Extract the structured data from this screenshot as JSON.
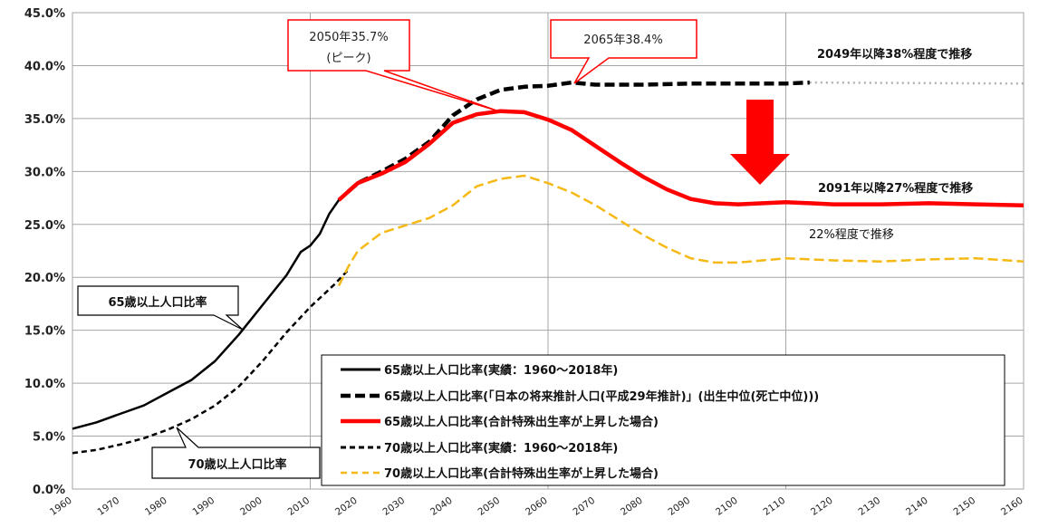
{
  "chart_data": {
    "type": "line",
    "title": "",
    "xlabel": "",
    "ylabel": "",
    "xlim": [
      1960,
      2160
    ],
    "ylim": [
      0,
      45
    ],
    "x_ticks": [
      "1960",
      "1970",
      "1980",
      "1990",
      "2000",
      "2010",
      "2020",
      "2030",
      "2040",
      "2050",
      "2060",
      "2070",
      "2080",
      "2090",
      "2100",
      "2110",
      "2120",
      "2130",
      "2140",
      "2150",
      "2160"
    ],
    "y_ticks": [
      "0.0%",
      "5.0%",
      "10.0%",
      "15.0%",
      "20.0%",
      "25.0%",
      "30.0%",
      "35.0%",
      "40.0%",
      "45.0%"
    ],
    "grid": "vertical lines at 1960, 2010, 2060, 2110, 2160",
    "series": [
      {
        "name": "65歳以上人口比率(実績：1960～2018年)",
        "color": "#000000",
        "style": "solid",
        "points": [
          [
            1960,
            5.7
          ],
          [
            1965,
            6.3
          ],
          [
            1970,
            7.1
          ],
          [
            1975,
            7.9
          ],
          [
            1980,
            9.1
          ],
          [
            1985,
            10.3
          ],
          [
            1990,
            12.1
          ],
          [
            1995,
            14.6
          ],
          [
            2000,
            17.4
          ],
          [
            2005,
            20.2
          ],
          [
            2008,
            22.4
          ],
          [
            2010,
            23.0
          ],
          [
            2012,
            24.1
          ],
          [
            2014,
            26.0
          ],
          [
            2016,
            27.3
          ],
          [
            2018,
            28.1
          ]
        ]
      },
      {
        "name": "65歳以上人口比率(「日本の将来推計人口(平成29年推計)」(出生中位(死亡中位)))",
        "color": "#000000",
        "style": "dash",
        "points": [
          [
            2018,
            28.1
          ],
          [
            2020,
            28.9
          ],
          [
            2025,
            30.0
          ],
          [
            2030,
            31.2
          ],
          [
            2035,
            32.8
          ],
          [
            2040,
            35.3
          ],
          [
            2045,
            36.8
          ],
          [
            2050,
            37.7
          ],
          [
            2055,
            38.0
          ],
          [
            2060,
            38.1
          ],
          [
            2065,
            38.4
          ],
          [
            2070,
            38.2
          ],
          [
            2080,
            38.2
          ],
          [
            2090,
            38.3
          ],
          [
            2100,
            38.3
          ],
          [
            2110,
            38.3
          ],
          [
            2115,
            38.4
          ]
        ]
      },
      {
        "name": "65歳以上人口比率(合計特殊出生率が上昇した場合)",
        "color": "#ff0000",
        "style": "solid",
        "points": [
          [
            2016,
            27.3
          ],
          [
            2018,
            28.1
          ],
          [
            2020,
            28.9
          ],
          [
            2025,
            29.8
          ],
          [
            2030,
            30.9
          ],
          [
            2035,
            32.6
          ],
          [
            2040,
            34.6
          ],
          [
            2045,
            35.4
          ],
          [
            2050,
            35.7
          ],
          [
            2055,
            35.6
          ],
          [
            2060,
            34.9
          ],
          [
            2065,
            33.9
          ],
          [
            2070,
            32.4
          ],
          [
            2075,
            30.9
          ],
          [
            2080,
            29.5
          ],
          [
            2085,
            28.3
          ],
          [
            2090,
            27.4
          ],
          [
            2095,
            27.0
          ],
          [
            2100,
            26.9
          ],
          [
            2110,
            27.1
          ],
          [
            2120,
            26.9
          ],
          [
            2130,
            26.9
          ],
          [
            2140,
            27.0
          ],
          [
            2150,
            26.9
          ],
          [
            2160,
            26.8
          ]
        ]
      },
      {
        "name": "70歳以上人口比率(実績：1960～2018年)",
        "color": "#000000",
        "style": "shortdash",
        "points": [
          [
            1960,
            3.4
          ],
          [
            1965,
            3.7
          ],
          [
            1970,
            4.2
          ],
          [
            1975,
            4.8
          ],
          [
            1980,
            5.6
          ],
          [
            1985,
            6.6
          ],
          [
            1990,
            7.9
          ],
          [
            1995,
            9.7
          ],
          [
            2000,
            12.1
          ],
          [
            2005,
            14.8
          ],
          [
            2010,
            17.2
          ],
          [
            2015,
            19.3
          ],
          [
            2018,
            20.7
          ]
        ]
      },
      {
        "name": "70歳以上人口比率(合計特殊出生率が上昇した場合)",
        "color": "#f5b814",
        "style": "dash",
        "points": [
          [
            2016,
            19.2
          ],
          [
            2018,
            21.0
          ],
          [
            2020,
            22.5
          ],
          [
            2025,
            24.2
          ],
          [
            2030,
            24.9
          ],
          [
            2035,
            25.6
          ],
          [
            2040,
            26.8
          ],
          [
            2045,
            28.6
          ],
          [
            2050,
            29.3
          ],
          [
            2055,
            29.6
          ],
          [
            2060,
            28.9
          ],
          [
            2065,
            28.0
          ],
          [
            2070,
            26.8
          ],
          [
            2075,
            25.4
          ],
          [
            2080,
            24.0
          ],
          [
            2085,
            22.8
          ],
          [
            2090,
            21.8
          ],
          [
            2095,
            21.4
          ],
          [
            2100,
            21.4
          ],
          [
            2110,
            21.8
          ],
          [
            2120,
            21.6
          ],
          [
            2130,
            21.5
          ],
          [
            2140,
            21.7
          ],
          [
            2150,
            21.8
          ],
          [
            2160,
            21.5
          ]
        ]
      },
      {
        "name": "",
        "color": "#b0b0b0",
        "style": "dot",
        "points": [
          [
            2115,
            38.4
          ],
          [
            2160,
            38.3
          ]
        ]
      }
    ],
    "annotations": {
      "callout_1": "2050年35.7%",
      "callout_1b": "(ピーク)",
      "callout_2": "2065年38.4%",
      "note_38": "2049年以降38%程度で推移",
      "note_27": "2091年以降27%程度で推移",
      "note_22": "22%程度で推移",
      "label_65": "65歳以上人口比率",
      "label_70": "70歳以上人口比率"
    },
    "legend_placement": "bottom-right"
  }
}
